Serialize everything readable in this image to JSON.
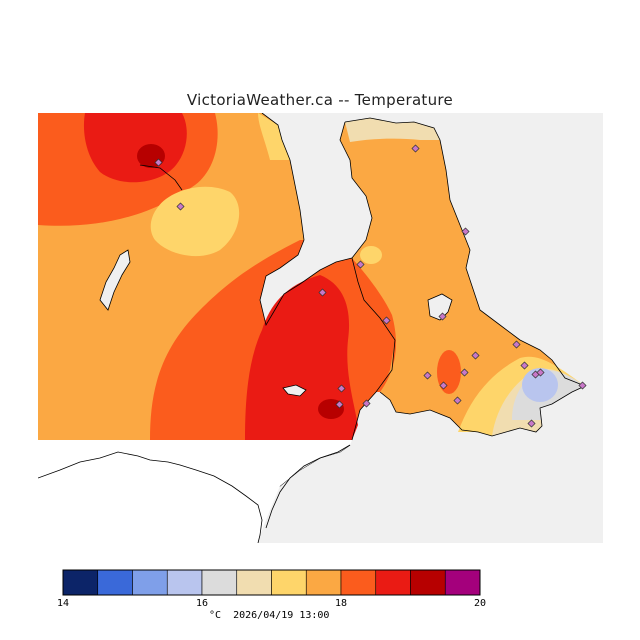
{
  "header": {
    "title": "VictoriaWeather.ca -- Temperature"
  },
  "map": {
    "variable": "Temperature",
    "units": "°C",
    "background_color": "#f0f0f0",
    "stations_count": 22
  },
  "legend": {
    "min": 14,
    "max": 20,
    "labeled_ticks": [
      "14",
      "16",
      "18",
      "20"
    ],
    "colors": [
      "#0c2468",
      "#3a69d9",
      "#7f9fe9",
      "#b9c5ee",
      "#dcdcdc",
      "#f1ddb0",
      "#fed56a",
      "#fba843",
      "#fb5c1d",
      "#ea1b14",
      "#b70000",
      "#a4007c"
    ]
  },
  "footer": {
    "units": "°C",
    "timestamp": "2026/04/19 13:00"
  }
}
